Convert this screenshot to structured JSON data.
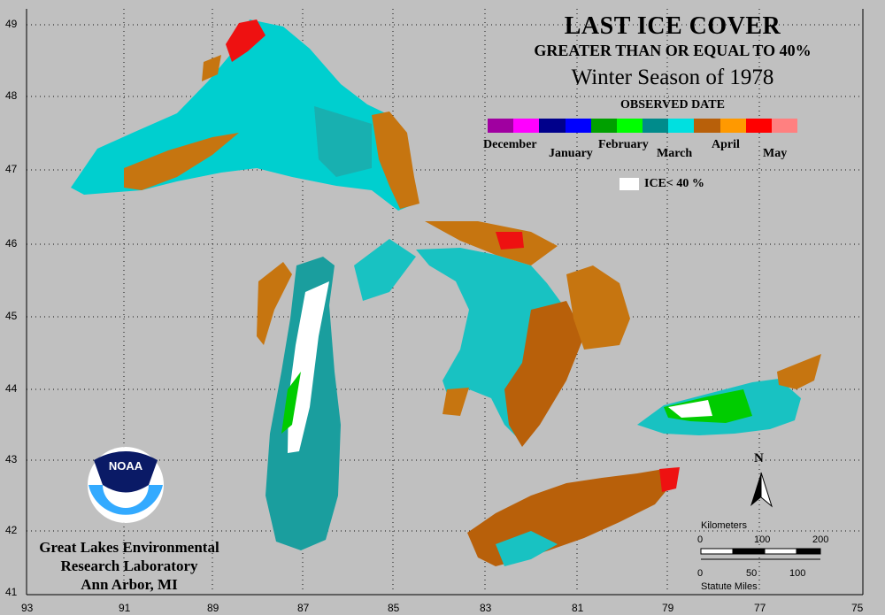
{
  "title": "LAST ICE COVER",
  "subtitle": "GREATER THAN OR EQUAL TO 40%",
  "season": "Winter Season of 1978",
  "legend": {
    "heading": "OBSERVED DATE",
    "colors": [
      "#a000a0",
      "#ff00ff",
      "#00008b",
      "#0000ff",
      "#00a000",
      "#00ff00",
      "#008b8b",
      "#00e0e0",
      "#b8600a",
      "#ff9900",
      "#ff0000",
      "#ff8080"
    ],
    "months": [
      "December",
      "January",
      "February",
      "March",
      "April",
      "May"
    ],
    "ice_label": "ICE< 40 %"
  },
  "latitudes": [
    "49",
    "48",
    "47",
    "46",
    "45",
    "44",
    "43",
    "42",
    "41"
  ],
  "longitudes": [
    "93",
    "91",
    "89",
    "87",
    "85",
    "83",
    "81",
    "79",
    "77",
    "75"
  ],
  "organization": {
    "logo_text": "NOAA",
    "line1": "Great Lakes Environmental",
    "line2": "Research Laboratory",
    "line3": "Ann Arbor, MI"
  },
  "scale": {
    "km_label": "Kilometers",
    "km_ticks": [
      "0",
      "100",
      "200"
    ],
    "mi_ticks": [
      "0",
      "50",
      "100"
    ],
    "mi_label": "Statute Miles"
  },
  "north_label": "N"
}
